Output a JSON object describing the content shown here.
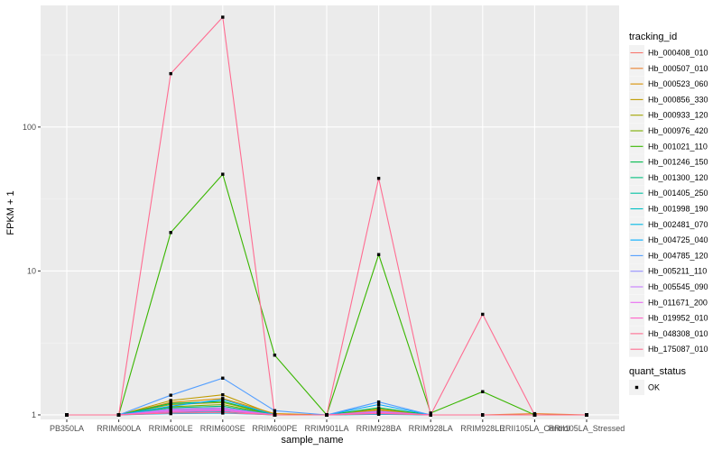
{
  "chart_data": {
    "type": "line",
    "xlabel": "sample_name",
    "ylabel": "FPKM + 1",
    "y_scale": "log10",
    "ylim": [
      0.93,
      700
    ],
    "y_ticks": [
      1,
      10,
      100
    ],
    "y_tick_labels": [
      "1",
      "10",
      "100"
    ],
    "grid": true,
    "legend_position": "right",
    "categories": [
      "PB350LA",
      "RRIM600LA",
      "RRIM600LE",
      "RRIM600SE",
      "RRIM600PE",
      "RRIM901LA",
      "RRIM928BA",
      "RRIM928LA",
      "RRIM928LE",
      "RRII105LA_Control",
      "RRII105LA_Stressed"
    ],
    "legend_title": "tracking_id",
    "series": [
      {
        "name": "Hb_000408_010",
        "color": "#F8766D",
        "values": [
          1,
          1,
          1.06,
          1.08,
          1.0,
          1,
          1.06,
          1.0,
          1.0,
          1.0,
          1.0
        ]
      },
      {
        "name": "Hb_000507_010",
        "color": "#EA8331",
        "values": [
          1,
          1,
          1.1,
          1.12,
          1.0,
          1,
          1.04,
          1.0,
          1.0,
          1.02,
          1.0
        ]
      },
      {
        "name": "Hb_000523_060",
        "color": "#D89000",
        "values": [
          1,
          1,
          1.22,
          1.3,
          1.02,
          1,
          1.08,
          1.0,
          1.0,
          1.0,
          1.0
        ]
      },
      {
        "name": "Hb_000856_330",
        "color": "#C09B00",
        "values": [
          1,
          1,
          1.26,
          1.38,
          1.0,
          1,
          1.1,
          1.0,
          1.0,
          1.0,
          1.0
        ]
      },
      {
        "name": "Hb_000933_120",
        "color": "#A3A500",
        "values": [
          1,
          1,
          1.18,
          1.22,
          1.0,
          1,
          1.06,
          1.0,
          1.0,
          1.0,
          1.0
        ]
      },
      {
        "name": "Hb_000976_420",
        "color": "#7CAE00",
        "values": [
          1,
          1,
          1.14,
          1.18,
          1.0,
          1,
          1.05,
          1.0,
          1.0,
          1.0,
          1.0
        ]
      },
      {
        "name": "Hb_001021_110",
        "color": "#39B600",
        "values": [
          1,
          1,
          18.5,
          47.0,
          2.6,
          1,
          13.0,
          1.03,
          1.45,
          1.0,
          1.0
        ]
      },
      {
        "name": "Hb_001246_150",
        "color": "#00BB4E",
        "values": [
          1,
          1,
          1.2,
          1.24,
          1.0,
          1,
          1.12,
          1.0,
          1.0,
          1.0,
          1.0
        ]
      },
      {
        "name": "Hb_001300_120",
        "color": "#00BF7D",
        "values": [
          1,
          1,
          1.12,
          1.15,
          1.0,
          1,
          1.04,
          1.0,
          1.0,
          1.0,
          1.0
        ]
      },
      {
        "name": "Hb_001405_250",
        "color": "#00C1A3",
        "values": [
          1,
          1,
          1.08,
          1.1,
          1.0,
          1,
          1.03,
          1.0,
          1.0,
          1.0,
          1.0
        ]
      },
      {
        "name": "Hb_001998_190",
        "color": "#00BFC4",
        "values": [
          1,
          1,
          1.04,
          1.05,
          1.0,
          1,
          1.02,
          1.0,
          1.0,
          1.0,
          1.0
        ]
      },
      {
        "name": "Hb_002481_070",
        "color": "#00B8E5",
        "values": [
          1,
          1,
          1.02,
          1.03,
          1.0,
          1,
          1.01,
          1.0,
          1.0,
          1.0,
          1.0
        ]
      },
      {
        "name": "Hb_004725_040",
        "color": "#00ABFD",
        "values": [
          1,
          1,
          1.15,
          1.28,
          1.0,
          1,
          1.18,
          1.0,
          1.0,
          1.0,
          1.0
        ]
      },
      {
        "name": "Hb_004785_120",
        "color": "#529EFF",
        "values": [
          1,
          1,
          1.37,
          1.8,
          1.07,
          1,
          1.23,
          1.0,
          1.0,
          1.0,
          1.0
        ]
      },
      {
        "name": "Hb_005211_110",
        "color": "#9590FF",
        "values": [
          1,
          1,
          1.1,
          1.12,
          1.0,
          1,
          1.06,
          1.0,
          1.0,
          1.0,
          1.0
        ]
      },
      {
        "name": "Hb_005545_090",
        "color": "#C77CFF",
        "values": [
          1,
          1,
          1.06,
          1.08,
          1.0,
          1,
          1.04,
          1.0,
          1.0,
          1.0,
          1.0
        ]
      },
      {
        "name": "Hb_011671_200",
        "color": "#E86BF3",
        "values": [
          1,
          1,
          1.08,
          1.1,
          1.0,
          1,
          1.05,
          1.0,
          1.0,
          1.0,
          1.0
        ]
      },
      {
        "name": "Hb_019952_010",
        "color": "#FF61C9",
        "values": [
          1,
          1,
          1.05,
          1.07,
          1.0,
          1,
          1.03,
          1.0,
          1.0,
          1.0,
          1.0
        ]
      },
      {
        "name": "Hb_048308_010",
        "color": "#FF6C91",
        "values": [
          1,
          1,
          1.03,
          1.04,
          1.0,
          1,
          1.02,
          1.0,
          1.0,
          1.0,
          1.0
        ]
      },
      {
        "name": "Hb_175087_010",
        "color": "#FF6C91",
        "values": [
          1,
          1,
          235,
          580,
          1.0,
          1,
          44,
          1.0,
          5.0,
          1.0,
          1.0
        ]
      }
    ],
    "legend2_title": "quant_status",
    "legend2_items": [
      "OK"
    ]
  }
}
